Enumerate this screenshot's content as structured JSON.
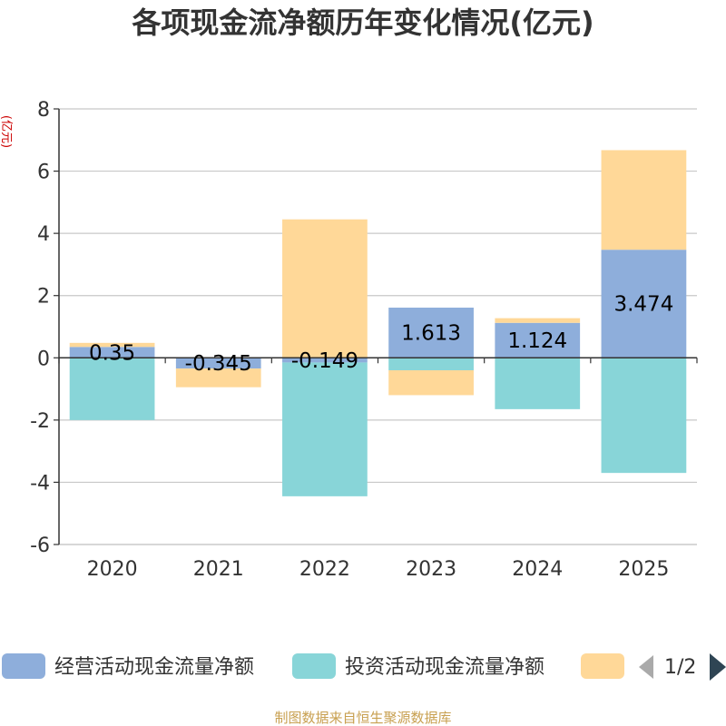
{
  "chart_data": {
    "type": "bar",
    "stacked": true,
    "title": "各项现金流净额历年变化情况(亿元)",
    "ylabel": "(亿元)",
    "xlabel": "",
    "categories": [
      "2020",
      "2021",
      "2022",
      "2023",
      "2024",
      "2025"
    ],
    "ylim": [
      -6,
      8
    ],
    "yticks": [
      8,
      6,
      4,
      2,
      0,
      -2,
      -4,
      -6
    ],
    "grid": true,
    "series": [
      {
        "name": "经营活动现金流量净额",
        "color": "#8eaedb",
        "values": [
          0.35,
          -0.345,
          -0.15,
          1.613,
          1.124,
          3.474
        ],
        "labels": [
          "0.35",
          "-0.345",
          "-0.149",
          "1.613",
          "1.124",
          "3.474"
        ]
      },
      {
        "name": "投资活动现金流量净额",
        "color": "#88d5d8",
        "values": [
          -2.0,
          0,
          -4.3,
          -0.4,
          -1.65,
          -3.7
        ]
      },
      {
        "name": "",
        "color": "#ffd898",
        "values": [
          0.13,
          -0.6,
          4.45,
          -0.8,
          0.15,
          3.2
        ]
      }
    ],
    "legend": {
      "position": "bottom",
      "page": "1/2",
      "items": [
        "经营活动现金流量净额",
        "投资活动现金流量净额",
        ""
      ]
    }
  },
  "footer": {
    "source": "制图数据来自恒生聚源数据库"
  }
}
